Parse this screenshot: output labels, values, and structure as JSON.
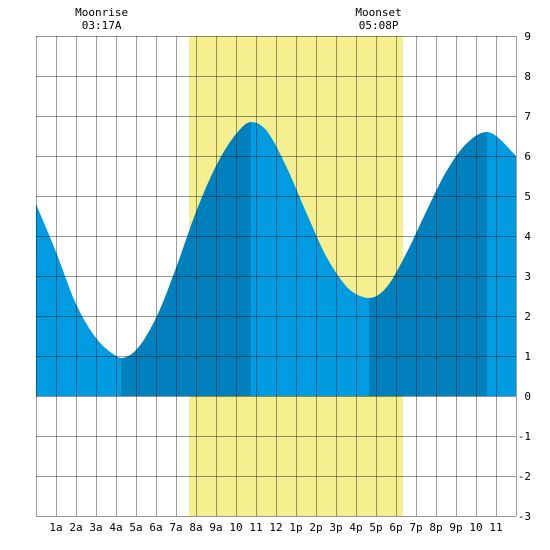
{
  "chart_data": {
    "type": "area",
    "title": "",
    "xlabel": "",
    "ylabel": "",
    "xlim": [
      0,
      24
    ],
    "ylim": [
      -3,
      9
    ],
    "x_ticks": [
      1,
      2,
      3,
      4,
      5,
      6,
      7,
      8,
      9,
      10,
      11,
      12,
      13,
      14,
      15,
      16,
      17,
      18,
      19,
      20,
      21,
      22,
      23
    ],
    "x_tick_labels": [
      "1a",
      "2a",
      "3a",
      "4a",
      "5a",
      "6a",
      "7a",
      "8a",
      "9a",
      "10",
      "11",
      "12",
      "1p",
      "2p",
      "3p",
      "4p",
      "5p",
      "6p",
      "7p",
      "8p",
      "9p",
      "10",
      "11"
    ],
    "y_ticks": [
      -3,
      -2,
      -1,
      0,
      1,
      2,
      3,
      4,
      5,
      6,
      7,
      8,
      9
    ],
    "y_tick_labels": [
      "-3",
      "-2",
      "-1",
      "0",
      "1",
      "2",
      "3",
      "4",
      "5",
      "6",
      "7",
      "8",
      "9"
    ],
    "grid": true,
    "daylight": {
      "start": 7.65,
      "end": 18.35,
      "color": "#f5ef8f"
    },
    "colors": {
      "light": "#009be0",
      "dark": "#0080bc",
      "grid": "#000000",
      "background": "#ffffff"
    },
    "extremes": [
      {
        "type": "low",
        "x": 4.25,
        "y": 0.95
      },
      {
        "type": "high",
        "x": 10.75,
        "y": 6.85
      },
      {
        "type": "low",
        "x": 16.65,
        "y": 2.45
      },
      {
        "type": "high",
        "x": 22.55,
        "y": 6.6
      }
    ],
    "series": [
      {
        "x": [
          0.0,
          1.0,
          2.0,
          3.0,
          4.0,
          4.25,
          5.0,
          6.0,
          7.0,
          8.0,
          9.0,
          10.0,
          10.75,
          11.5,
          12.5,
          13.5,
          14.5,
          15.5,
          16.0,
          16.65,
          17.5,
          18.5,
          19.5,
          20.5,
          21.5,
          22.55,
          23.0,
          24.0
        ],
        "y": [
          4.8,
          3.6,
          2.3,
          1.45,
          1.0,
          0.95,
          1.15,
          1.95,
          3.2,
          4.6,
          5.75,
          6.55,
          6.85,
          6.65,
          5.75,
          4.6,
          3.5,
          2.75,
          2.55,
          2.45,
          2.7,
          3.55,
          4.6,
          5.6,
          6.3,
          6.6,
          6.5,
          6.0
        ]
      }
    ],
    "annotations": [
      {
        "label": "Moonrise",
        "time": "03:17A",
        "x": 3.28
      },
      {
        "label": "Moonset",
        "time": "05:08P",
        "x": 17.13
      }
    ]
  }
}
